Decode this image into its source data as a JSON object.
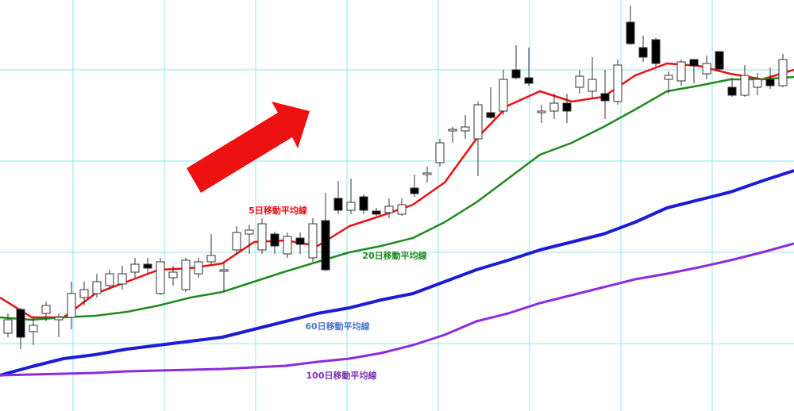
{
  "chart_data": {
    "type": "candlestick",
    "xlim": [
      -0.625,
      61.875
    ],
    "ylim": [
      0,
      518
    ],
    "xticks": [
      5.125,
      12.3125,
      19.5,
      26.6875,
      33.875,
      41.0625,
      48.25,
      55.4375
    ],
    "yticks": [
      85,
      200,
      315,
      430
    ],
    "grid": true,
    "grid_color": "#8fe6ee",
    "up_color": "#ffffff",
    "down_color": "#000000",
    "edge_color": "#333333",
    "x": [
      0,
      1,
      2,
      3,
      4,
      5,
      6,
      7,
      8,
      9,
      10,
      11,
      12,
      13,
      14,
      15,
      16,
      17,
      18,
      19,
      20,
      21,
      22,
      23,
      24,
      25,
      26,
      27,
      28,
      29,
      30,
      31,
      32,
      33,
      34,
      35,
      36,
      37,
      38,
      39,
      40,
      41,
      42,
      43,
      44,
      45,
      46,
      47,
      48,
      49,
      50,
      51,
      52,
      53,
      54,
      55,
      56,
      57,
      58,
      59,
      60,
      61
    ],
    "open": [
      98,
      128,
      100,
      123,
      115,
      118,
      143,
      148,
      158,
      160,
      175,
      185,
      148,
      168,
      153,
      173,
      188,
      176,
      203,
      223,
      203,
      223,
      198,
      218,
      193,
      240,
      268,
      253,
      270,
      252,
      250,
      248,
      281,
      298,
      313,
      353,
      353,
      343,
      376,
      378,
      430,
      420,
      376,
      378,
      388,
      408,
      403,
      400,
      390,
      490,
      458,
      468,
      418,
      416,
      443,
      425,
      453,
      408,
      398,
      408,
      418,
      410
    ],
    "high": [
      123,
      130,
      118,
      138,
      123,
      163,
      163,
      173,
      178,
      183,
      193,
      193,
      193,
      183,
      193,
      193,
      223,
      188,
      233,
      235,
      243,
      226,
      225,
      225,
      243,
      275,
      290,
      293,
      273,
      256,
      268,
      268,
      298,
      308,
      343,
      358,
      373,
      390,
      408,
      430,
      461,
      458,
      386,
      400,
      400,
      430,
      446,
      430,
      443,
      511,
      473,
      470,
      428,
      443,
      443,
      448,
      453,
      420,
      436,
      426,
      433,
      450
    ],
    "low": [
      93,
      78,
      83,
      113,
      93,
      103,
      133,
      143,
      153,
      153,
      168,
      173,
      146,
      158,
      150,
      168,
      183,
      150,
      198,
      198,
      198,
      198,
      193,
      198,
      188,
      176,
      248,
      248,
      248,
      246,
      243,
      246,
      270,
      288,
      308,
      338,
      343,
      296,
      368,
      373,
      418,
      410,
      363,
      368,
      363,
      400,
      393,
      368,
      386,
      461,
      440,
      433,
      400,
      410,
      413,
      418,
      428,
      396,
      396,
      398,
      406,
      408
    ],
    "close": [
      115,
      93,
      108,
      133,
      118,
      148,
      153,
      163,
      173,
      173,
      185,
      180,
      188,
      175,
      190,
      188,
      196,
      178,
      225,
      228,
      236,
      208,
      220,
      210,
      236,
      178,
      253,
      263,
      253,
      248,
      258,
      260,
      274,
      300,
      338,
      355,
      358,
      386,
      370,
      418,
      420,
      413,
      378,
      388,
      378,
      422,
      418,
      391,
      436,
      463,
      446,
      438,
      423,
      440,
      435,
      438,
      431,
      398,
      423,
      418,
      410,
      443
    ],
    "lines": [
      {
        "name": "5日移動平均線",
        "color": "#ee1111",
        "x": [
          -0.625,
          1.875,
          4.375,
          6.875,
          9.375,
          11.875,
          14.375,
          16.875,
          19.375,
          21.875,
          24.375,
          26.875,
          29.375,
          31.875,
          34.375,
          36.875,
          39.375,
          41.875,
          44.375,
          46.875,
          49.375,
          51.875,
          54.375,
          56.875,
          59.375,
          61.875
        ],
        "values": [
          143,
          118,
          118,
          148,
          163,
          178,
          180,
          186,
          213,
          215,
          208,
          233,
          246,
          260,
          288,
          343,
          385,
          403,
          390,
          396,
          423,
          438,
          435,
          425,
          418,
          430
        ]
      },
      {
        "name": "20日移動平均線",
        "color": "#1f8a1f",
        "x": [
          -0.625,
          1.875,
          4.375,
          6.875,
          9.375,
          11.875,
          14.375,
          16.875,
          19.375,
          21.875,
          24.375,
          26.875,
          29.375,
          31.875,
          34.375,
          36.875,
          39.375,
          41.875,
          44.375,
          46.875,
          49.375,
          51.875,
          54.375,
          56.875,
          59.375,
          61.875
        ],
        "values": [
          118,
          115,
          118,
          120,
          125,
          133,
          143,
          150,
          163,
          176,
          188,
          200,
          208,
          218,
          238,
          263,
          293,
          323,
          338,
          358,
          380,
          403,
          410,
          418,
          418,
          421
        ]
      },
      {
        "name": "60日移動平均線",
        "color": "#1c1cd6",
        "x": [
          -0.625,
          1.875,
          4.375,
          6.875,
          9.375,
          11.875,
          14.375,
          16.875,
          19.375,
          21.875,
          24.375,
          26.875,
          29.375,
          31.875,
          34.375,
          36.875,
          39.375,
          41.875,
          44.375,
          46.875,
          49.375,
          51.875,
          54.375,
          56.875,
          59.375,
          61.875
        ],
        "values": [
          45,
          56,
          66,
          71,
          78,
          83,
          88,
          93,
          103,
          113,
          123,
          130,
          140,
          148,
          163,
          178,
          190,
          203,
          213,
          223,
          238,
          256,
          266,
          276,
          290,
          303
        ]
      },
      {
        "name": "100日移動平均線",
        "color": "#8a2be2",
        "x": [
          -0.625,
          1.875,
          4.375,
          6.875,
          9.375,
          11.875,
          14.375,
          16.875,
          19.375,
          21.875,
          24.375,
          26.875,
          29.375,
          31.875,
          34.375,
          36.875,
          39.375,
          41.875,
          44.375,
          46.875,
          49.375,
          51.875,
          54.375,
          56.875,
          59.375,
          61.875
        ],
        "values": [
          45,
          46,
          47,
          48,
          50,
          51,
          52,
          53,
          55,
          57,
          62,
          66,
          73,
          83,
          96,
          113,
          123,
          136,
          146,
          156,
          166,
          173,
          181,
          190,
          200,
          211
        ]
      }
    ],
    "label_colors": [
      "#ee1111",
      "#1f8a1f",
      "#4a78c8",
      "#7b30b0"
    ]
  }
}
